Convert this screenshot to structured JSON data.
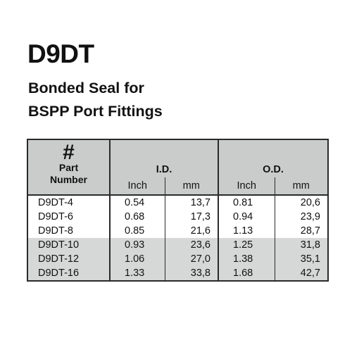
{
  "title": "D9DT",
  "subtitle_line1": "Bonded Seal for",
  "subtitle_line2": "BSPP Port Fittings",
  "table": {
    "hash_symbol": "#",
    "part_label_line1": "Part",
    "part_label_line2": "Number",
    "id_header": "I.D.",
    "od_header": "O.D.",
    "unit_inch": "Inch",
    "unit_mm": "mm",
    "rows": [
      {
        "part": "D9DT-4",
        "id_inch": "0.54",
        "id_mm": "13,7",
        "od_inch": "0.81",
        "od_mm": "20,6"
      },
      {
        "part": "D9DT-6",
        "id_inch": "0.68",
        "id_mm": "17,3",
        "od_inch": "0.94",
        "od_mm": "23,9"
      },
      {
        "part": "D9DT-8",
        "id_inch": "0.85",
        "id_mm": "21,6",
        "od_inch": "1.13",
        "od_mm": "28,7"
      },
      {
        "part": "D9DT-10",
        "id_inch": "0.93",
        "id_mm": "23,6",
        "od_inch": "1.25",
        "od_mm": "31,8"
      },
      {
        "part": "D9DT-12",
        "id_inch": "1.06",
        "id_mm": "27,0",
        "od_inch": "1.38",
        "od_mm": "35,1"
      },
      {
        "part": "D9DT-16",
        "id_inch": "1.33",
        "id_mm": "33,8",
        "od_inch": "1.68",
        "od_mm": "42,7"
      }
    ]
  },
  "colors": {
    "header_background": "#c9cccb",
    "shaded_row_background": "#d6d8d7",
    "border": "#2a2a2a",
    "text": "#111111"
  }
}
